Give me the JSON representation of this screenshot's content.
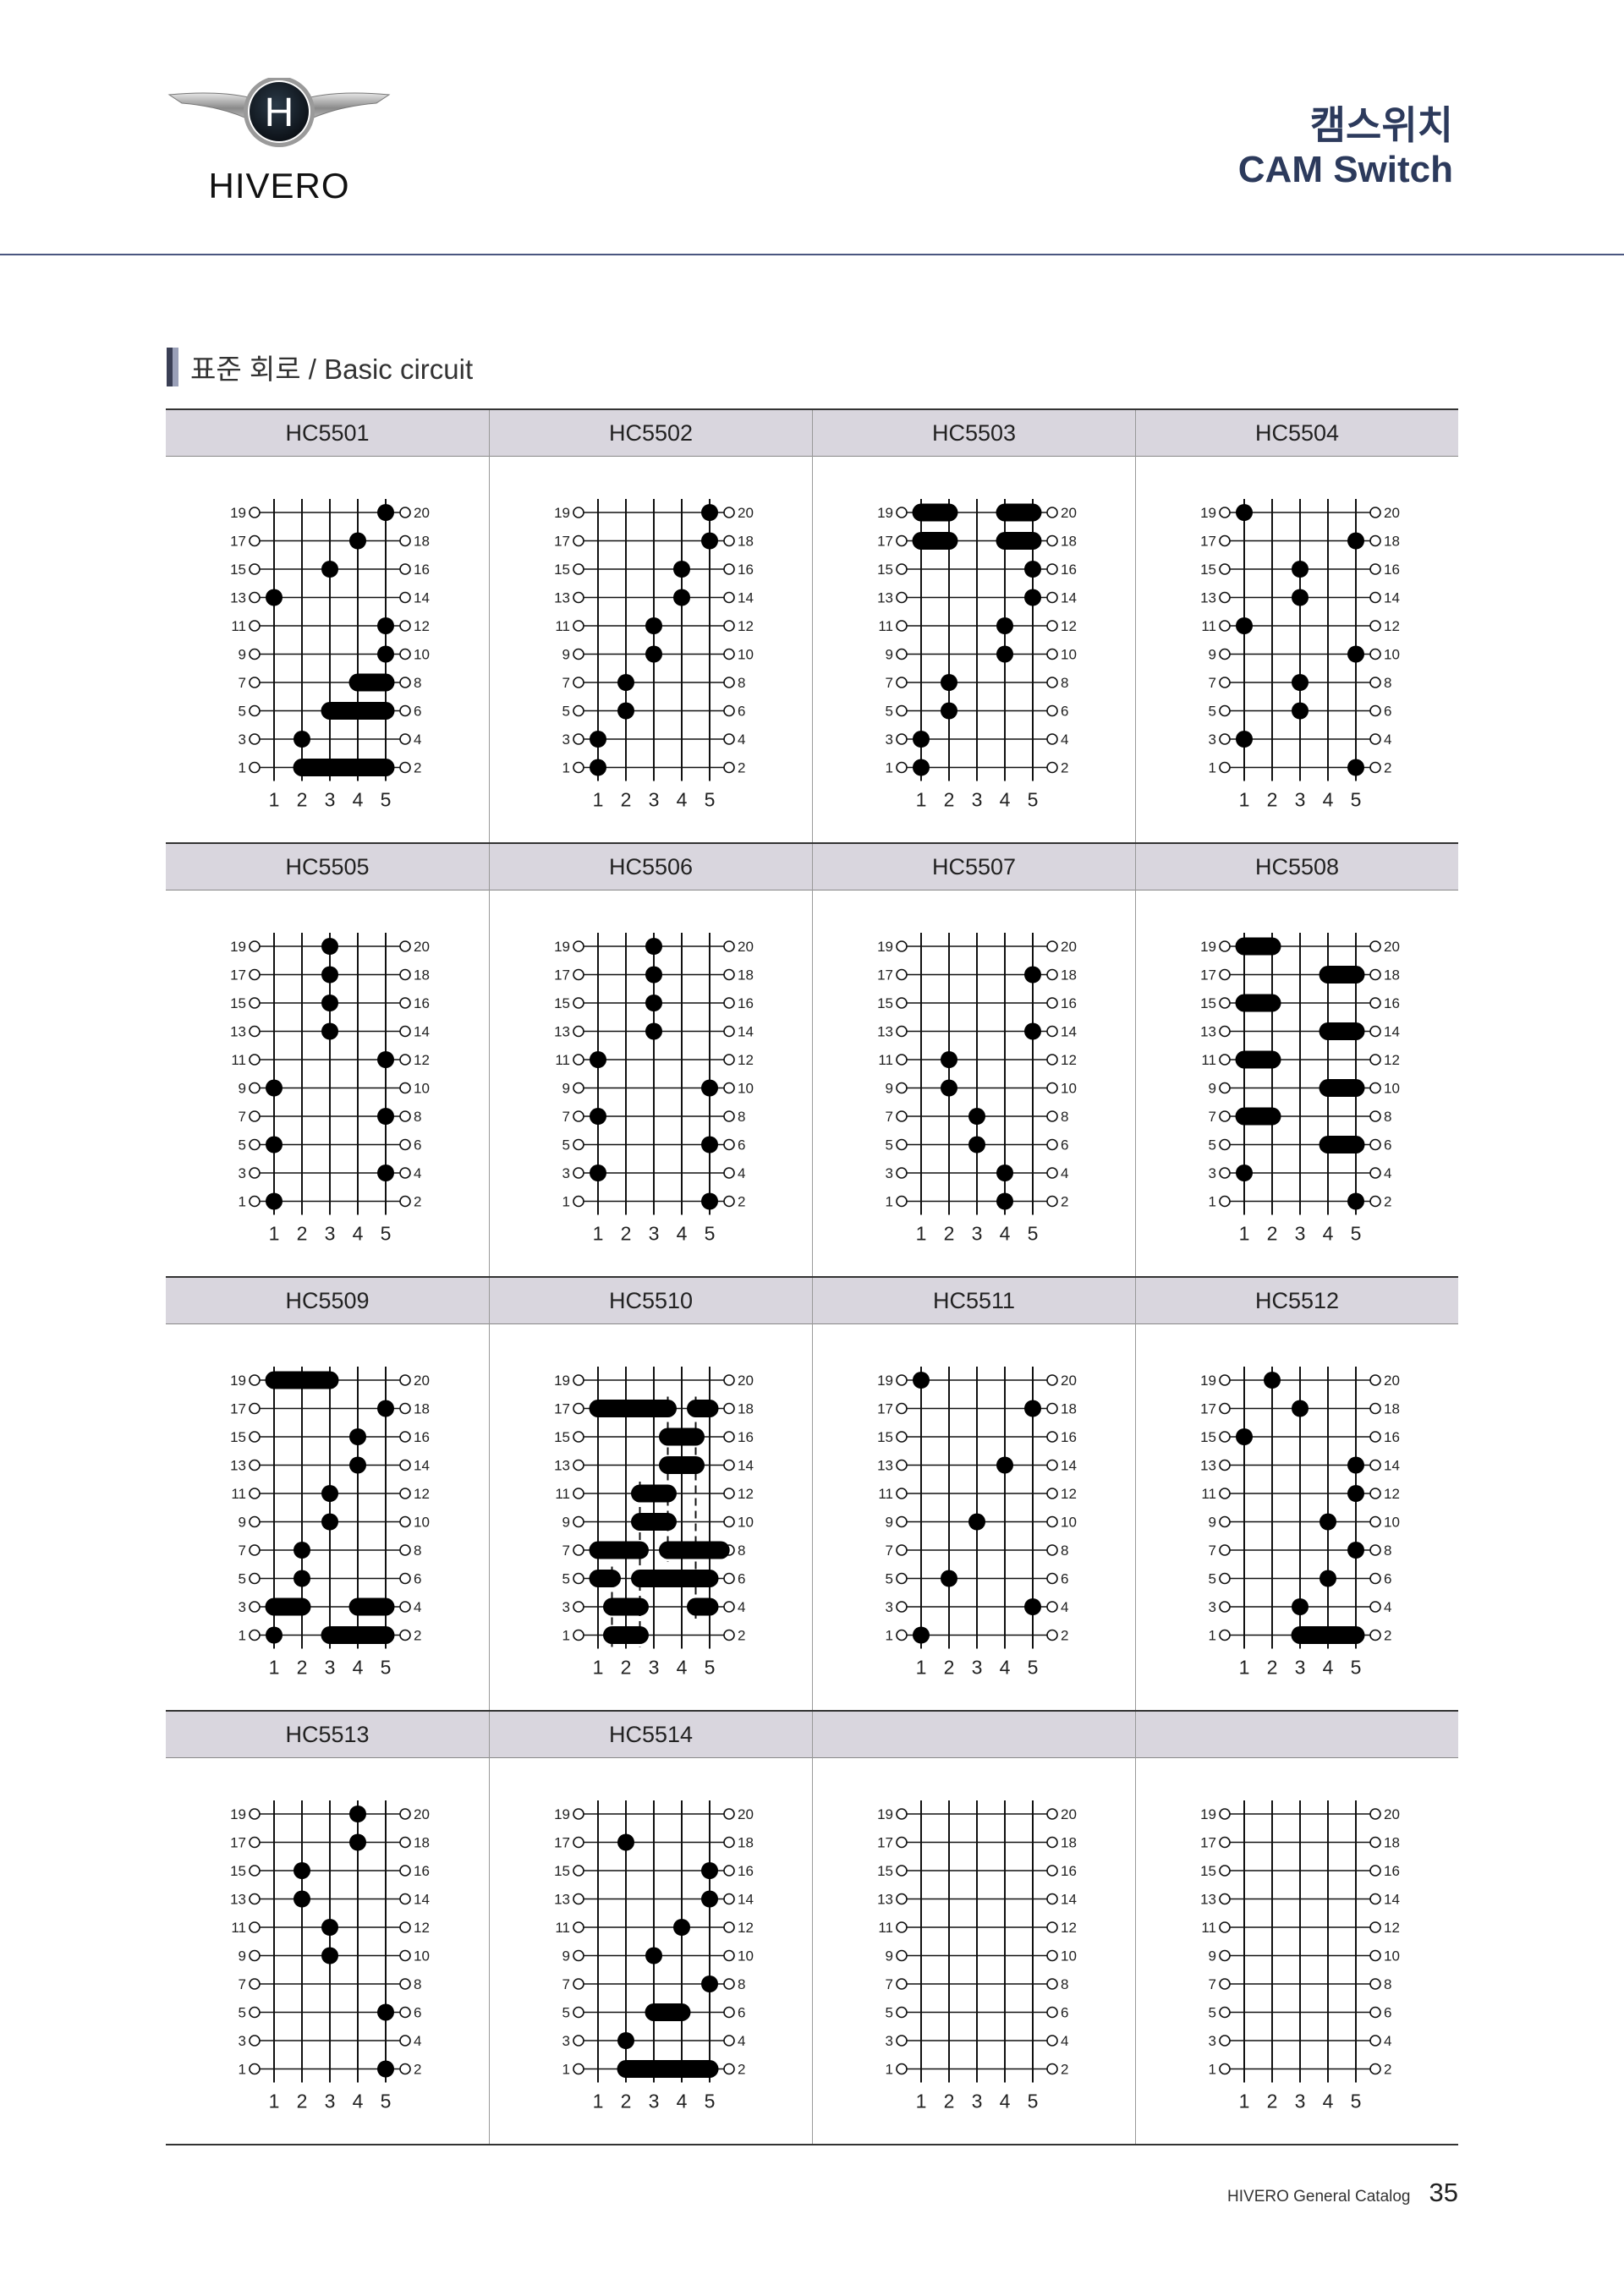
{
  "header": {
    "logo_text": "HIVERO",
    "logo_letter": "H",
    "title_ko": "캠스위치",
    "title_en": "CAM Switch"
  },
  "section": {
    "title": "표준 회로 / Basic circuit"
  },
  "diagram_labels": {
    "left_terminals": [
      "19",
      "17",
      "15",
      "13",
      "11",
      "9",
      "7",
      "5",
      "3",
      "1"
    ],
    "right_terminals": [
      "20",
      "18",
      "16",
      "14",
      "12",
      "10",
      "8",
      "6",
      "4",
      "2"
    ],
    "positions": [
      "1",
      "2",
      "3",
      "4",
      "5"
    ]
  },
  "diagrams": [
    {
      "model": "HC5501",
      "rows": [
        [
          [
            5
          ]
        ],
        [
          [
            4
          ]
        ],
        [
          [
            3
          ]
        ],
        [
          [
            1
          ]
        ],
        [
          [
            5
          ]
        ],
        [
          [
            5
          ]
        ],
        [
          [
            4,
            5
          ]
        ],
        [
          [
            3,
            5
          ]
        ],
        [
          [
            2
          ]
        ],
        [
          [
            2,
            5
          ]
        ]
      ]
    },
    {
      "model": "HC5502",
      "rows": [
        [
          [
            5
          ]
        ],
        [
          [
            5
          ]
        ],
        [
          [
            4
          ]
        ],
        [
          [
            4
          ]
        ],
        [
          [
            3
          ]
        ],
        [
          [
            3
          ]
        ],
        [
          [
            2
          ]
        ],
        [
          [
            2
          ]
        ],
        [
          [
            1
          ]
        ],
        [
          [
            1
          ]
        ]
      ]
    },
    {
      "model": "HC5503",
      "rows": [
        [
          [
            1,
            2
          ],
          [
            4,
            5
          ]
        ],
        [
          [
            1,
            2
          ],
          [
            4,
            5
          ]
        ],
        [
          [
            5
          ]
        ],
        [
          [
            5
          ]
        ],
        [
          [
            4
          ]
        ],
        [
          [
            4
          ]
        ],
        [
          [
            2
          ]
        ],
        [
          [
            2
          ]
        ],
        [
          [
            1
          ]
        ],
        [
          [
            1
          ]
        ]
      ]
    },
    {
      "model": "HC5504",
      "rows": [
        [
          [
            1
          ]
        ],
        [
          [
            5
          ]
        ],
        [
          [
            3
          ]
        ],
        [
          [
            3
          ]
        ],
        [
          [
            1
          ]
        ],
        [
          [
            5
          ]
        ],
        [
          [
            3
          ]
        ],
        [
          [
            3
          ]
        ],
        [
          [
            1
          ]
        ],
        [
          [
            5
          ]
        ]
      ]
    },
    {
      "model": "HC5505",
      "rows": [
        [
          [
            3
          ]
        ],
        [
          [
            3
          ]
        ],
        [
          [
            3
          ]
        ],
        [
          [
            3
          ]
        ],
        [
          [
            5
          ]
        ],
        [
          [
            1
          ]
        ],
        [
          [
            5
          ]
        ],
        [
          [
            1
          ]
        ],
        [
          [
            5
          ]
        ],
        [
          [
            1
          ]
        ]
      ]
    },
    {
      "model": "HC5506",
      "rows": [
        [
          [
            3
          ]
        ],
        [
          [
            3
          ]
        ],
        [
          [
            3
          ]
        ],
        [
          [
            3
          ]
        ],
        [
          [
            1
          ]
        ],
        [
          [
            5
          ]
        ],
        [
          [
            1
          ]
        ],
        [
          [
            5
          ]
        ],
        [
          [
            1
          ]
        ],
        [
          [
            5
          ]
        ]
      ]
    },
    {
      "model": "HC5507",
      "rows": [
        [],
        [
          [
            5
          ]
        ],
        [],
        [
          [
            5
          ]
        ],
        [
          [
            2
          ]
        ],
        [
          [
            2
          ]
        ],
        [
          [
            3
          ]
        ],
        [
          [
            3
          ]
        ],
        [
          [
            4
          ]
        ],
        [
          [
            4
          ]
        ]
      ]
    },
    {
      "model": "HC5508",
      "rows": [
        [
          [
            1,
            2
          ]
        ],
        [
          [
            4,
            5
          ]
        ],
        [
          [
            1,
            2
          ]
        ],
        [
          [
            4,
            5
          ]
        ],
        [
          [
            1,
            2
          ]
        ],
        [
          [
            4,
            5
          ]
        ],
        [
          [
            1,
            2
          ]
        ],
        [
          [
            4,
            5
          ]
        ],
        [
          [
            1
          ]
        ],
        [
          [
            5
          ]
        ]
      ]
    },
    {
      "model": "HC5509",
      "rows": [
        [
          [
            1,
            3
          ]
        ],
        [
          [
            5
          ]
        ],
        [
          [
            4
          ]
        ],
        [
          [
            4
          ]
        ],
        [
          [
            3
          ]
        ],
        [
          [
            3
          ]
        ],
        [
          [
            2
          ]
        ],
        [
          [
            2
          ]
        ],
        [
          [
            1,
            2
          ],
          [
            4,
            5
          ]
        ],
        [
          [
            1
          ],
          [
            3,
            5
          ]
        ]
      ]
    },
    {
      "model": "HC5510",
      "rows": [
        [],
        [
          [
            1,
            3.5
          ],
          [
            4.5,
            5
          ]
        ],
        [
          [
            3.5,
            4.5
          ]
        ],
        [
          [
            3.5,
            4.5
          ]
        ],
        [
          [
            2.5,
            3.5
          ]
        ],
        [
          [
            2.5,
            3.5
          ]
        ],
        [
          [
            1,
            2.5
          ],
          [
            3.5,
            5.4
          ]
        ],
        [
          [
            1,
            1.5
          ],
          [
            2.5,
            5
          ]
        ],
        [
          [
            1.5,
            2.5
          ],
          [
            4.5,
            5
          ]
        ],
        [
          [
            1.5,
            2.5
          ]
        ]
      ],
      "dashed": [
        [
          1.5,
          7,
          9
        ],
        [
          2.5,
          4,
          9
        ],
        [
          3.5,
          1,
          6
        ],
        [
          4.5,
          1,
          8
        ]
      ]
    },
    {
      "model": "HC5511",
      "rows": [
        [
          [
            1
          ]
        ],
        [
          [
            5
          ]
        ],
        [],
        [
          [
            4
          ]
        ],
        [],
        [
          [
            3
          ]
        ],
        [],
        [
          [
            2
          ]
        ],
        [
          [
            5
          ]
        ],
        [
          [
            1
          ]
        ]
      ]
    },
    {
      "model": "HC5512",
      "rows": [
        [
          [
            2
          ]
        ],
        [
          [
            3
          ]
        ],
        [
          [
            1
          ]
        ],
        [
          [
            5
          ]
        ],
        [
          [
            5
          ]
        ],
        [
          [
            4
          ]
        ],
        [
          [
            5
          ]
        ],
        [
          [
            4
          ]
        ],
        [
          [
            3
          ]
        ],
        [
          [
            3,
            5
          ]
        ]
      ]
    },
    {
      "model": "HC5513",
      "rows": [
        [
          [
            4
          ]
        ],
        [
          [
            4
          ]
        ],
        [
          [
            2
          ]
        ],
        [
          [
            2
          ]
        ],
        [
          [
            3
          ]
        ],
        [
          [
            3
          ]
        ],
        [],
        [
          [
            5
          ]
        ],
        [],
        [
          [
            5
          ]
        ]
      ]
    },
    {
      "model": "HC5514",
      "rows": [
        [],
        [
          [
            2
          ]
        ],
        [
          [
            5
          ]
        ],
        [
          [
            5
          ]
        ],
        [
          [
            4
          ]
        ],
        [
          [
            3
          ]
        ],
        [
          [
            5
          ]
        ],
        [
          [
            3,
            4
          ]
        ],
        [
          [
            2
          ]
        ],
        [
          [
            2,
            5
          ]
        ]
      ]
    },
    {
      "model": "",
      "rows": [
        [],
        [],
        [],
        [],
        [],
        [],
        [],
        [],
        [],
        []
      ]
    },
    {
      "model": "",
      "rows": [
        [],
        [],
        [],
        [],
        [],
        [],
        [],
        [],
        [],
        []
      ]
    }
  ],
  "footer": {
    "catalog": "HIVERO General Catalog",
    "page": "35"
  },
  "colors": {
    "navy": "#2c3a5c",
    "header_band": "#d9d6de"
  }
}
